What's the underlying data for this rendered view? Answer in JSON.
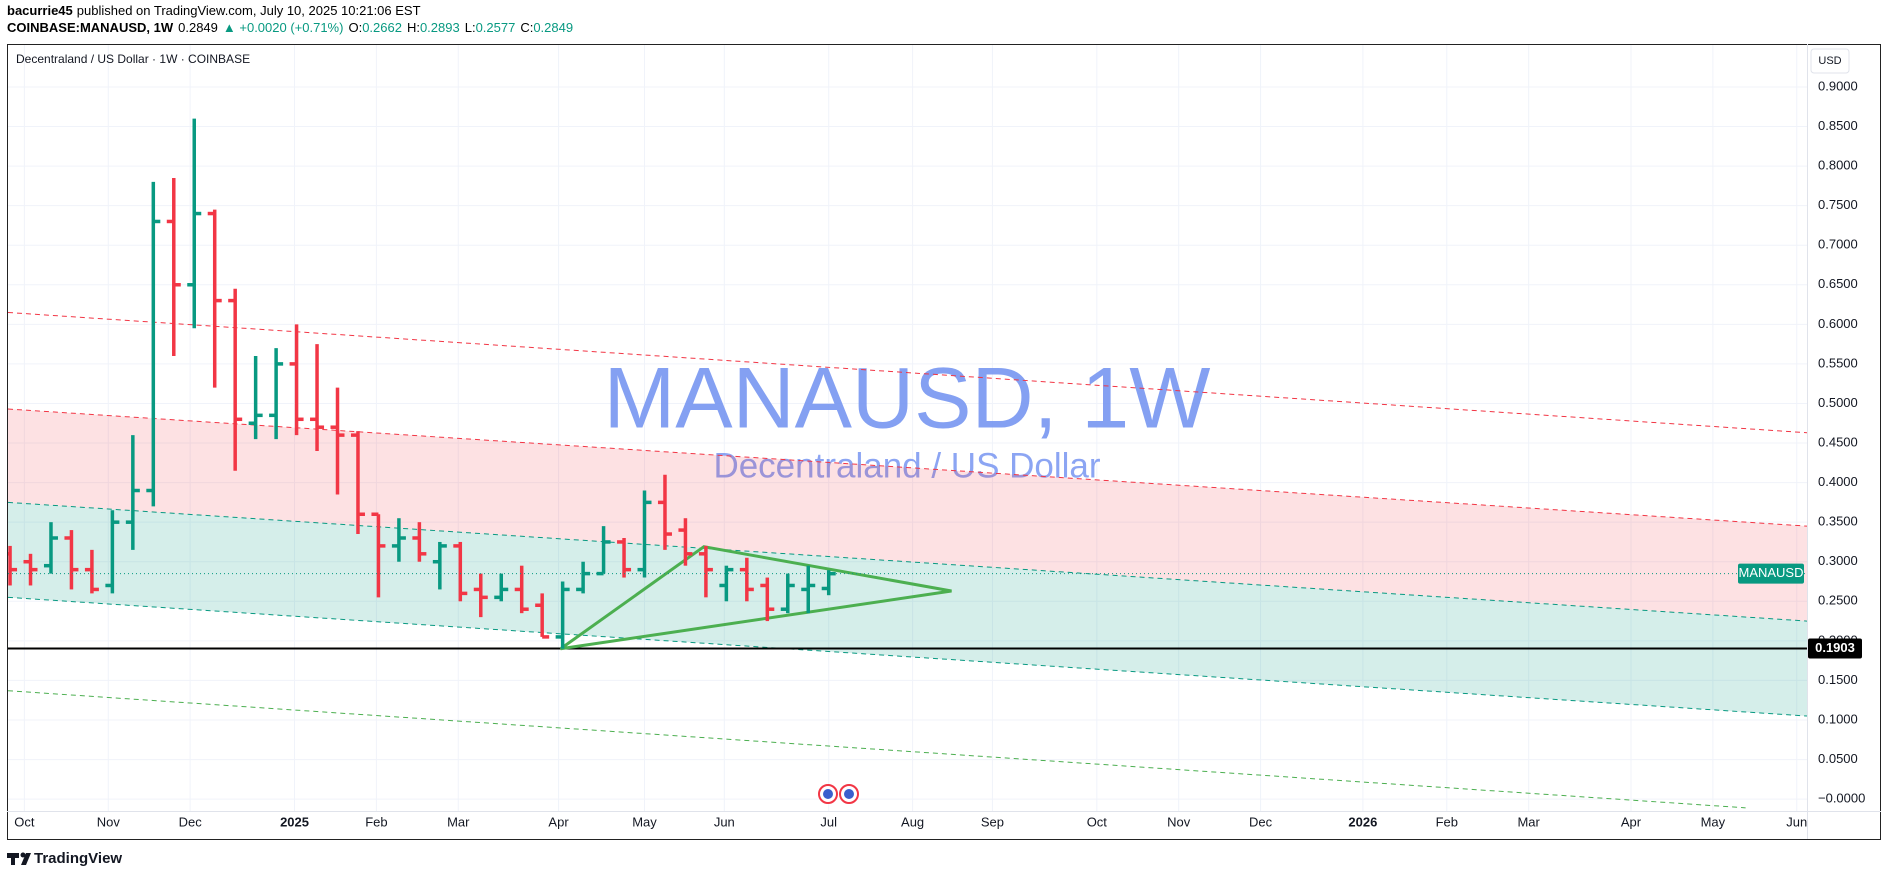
{
  "header": {
    "publisher": "bacurrie45",
    "published": "published on TradingView.com, July 10, 2025 10:21:06 EST",
    "symbol": "COINBASE:MANAUSD, 1W",
    "last": "0.2849",
    "change": "▲ +0.0020 (+0.71%)",
    "o_label": "O:",
    "o": "0.2662",
    "h_label": "H:",
    "h": "0.2893",
    "l_label": "L:",
    "l": "0.2577",
    "c_label": "C:",
    "c": "0.2849"
  },
  "chart_data": {
    "type": "ohlc",
    "title": "Decentraland / US Dollar · 1W · COINBASE",
    "currency": "USD",
    "watermark": "MANAUSD, 1W",
    "watermark_subtitle": "Decentraland / US Dollar",
    "price_label": "MANAUSD",
    "up_color": "#089981",
    "down_color": "#f23645",
    "categories": [
      null,
      null,
      null,
      null,
      null,
      null,
      null,
      null,
      null,
      null,
      null,
      null,
      null,
      null,
      null,
      null,
      null,
      null,
      null,
      null,
      null,
      null,
      null,
      null,
      null,
      null,
      null,
      null,
      null,
      null,
      null,
      null,
      null,
      null,
      null,
      null,
      null,
      null,
      null,
      null,
      null
    ],
    "open": [
      0.31,
      0.3,
      0.295,
      0.33,
      0.29,
      0.27,
      0.35,
      0.39,
      0.73,
      0.65,
      0.74,
      0.63,
      0.475,
      0.485,
      0.55,
      0.48,
      0.47,
      0.46,
      0.36,
      0.32,
      0.33,
      0.3,
      0.32,
      0.265,
      0.255,
      0.265,
      0.245,
      0.205,
      0.265,
      0.285,
      0.325,
      0.29,
      0.375,
      0.34,
      0.31,
      0.27,
      0.29,
      0.27,
      0.24,
      0.265,
      0.2662
    ],
    "high": [
      0.32,
      0.31,
      0.35,
      0.34,
      0.315,
      0.365,
      0.46,
      0.78,
      0.785,
      0.86,
      0.745,
      0.645,
      0.56,
      0.57,
      0.6,
      0.575,
      0.52,
      0.465,
      0.36,
      0.355,
      0.35,
      0.325,
      0.325,
      0.285,
      0.285,
      0.295,
      0.26,
      0.275,
      0.3,
      0.345,
      0.33,
      0.39,
      0.41,
      0.355,
      0.32,
      0.295,
      0.305,
      0.28,
      0.285,
      0.295,
      0.2893
    ],
    "low": [
      0.27,
      0.27,
      0.285,
      0.265,
      0.26,
      0.26,
      0.315,
      0.37,
      0.56,
      0.595,
      0.52,
      0.415,
      0.455,
      0.455,
      0.46,
      0.44,
      0.385,
      0.335,
      0.255,
      0.3,
      0.3,
      0.265,
      0.25,
      0.23,
      0.25,
      0.235,
      0.205,
      0.19,
      0.26,
      0.285,
      0.28,
      0.28,
      0.315,
      0.295,
      0.255,
      0.25,
      0.25,
      0.225,
      0.235,
      0.235,
      0.2577
    ],
    "close": [
      0.29,
      0.29,
      0.33,
      0.29,
      0.265,
      0.35,
      0.39,
      0.73,
      0.65,
      0.74,
      0.63,
      0.48,
      0.485,
      0.55,
      0.48,
      0.47,
      0.46,
      0.36,
      0.32,
      0.33,
      0.31,
      0.32,
      0.26,
      0.255,
      0.265,
      0.24,
      0.205,
      0.265,
      0.285,
      0.325,
      0.29,
      0.375,
      0.335,
      0.31,
      0.29,
      0.29,
      0.265,
      0.24,
      0.27,
      0.27,
      0.2849
    ],
    "xlim": [
      -0.1,
      87.8
    ],
    "xticks": [
      {
        "value": 0.7,
        "label": "Oct"
      },
      {
        "value": 4.8,
        "label": "Nov"
      },
      {
        "value": 8.8,
        "label": "Dec"
      },
      {
        "value": 13.9,
        "label": "2025"
      },
      {
        "value": 17.9,
        "label": "Feb"
      },
      {
        "value": 21.9,
        "label": "Mar"
      },
      {
        "value": 26.8,
        "label": "Apr"
      },
      {
        "value": 31.0,
        "label": "May"
      },
      {
        "value": 34.9,
        "label": "Jun"
      },
      {
        "value": 40.0,
        "label": "Jul"
      },
      {
        "value": 44.1,
        "label": "Aug"
      },
      {
        "value": 48.0,
        "label": "Sep"
      },
      {
        "value": 53.1,
        "label": "Oct"
      },
      {
        "value": 57.1,
        "label": "Nov"
      },
      {
        "value": 61.1,
        "label": "Dec"
      },
      {
        "value": 66.1,
        "label": "2026"
      },
      {
        "value": 70.2,
        "label": "Feb"
      },
      {
        "value": 74.2,
        "label": "Mar"
      },
      {
        "value": 79.2,
        "label": "Apr"
      },
      {
        "value": 83.2,
        "label": "May"
      },
      {
        "value": 87.3,
        "label": "Jun"
      }
    ],
    "ylim": [
      -0.015,
      0.953
    ],
    "yticks": [
      {
        "value": 0,
        "label": "−0.0000"
      },
      {
        "value": 0.05,
        "label": "0.0500"
      },
      {
        "value": 0.1,
        "label": "0.1000"
      },
      {
        "value": 0.15,
        "label": "0.1500"
      },
      {
        "value": 0.2,
        "label": "0.2000"
      },
      {
        "value": 0.25,
        "label": "0.2500"
      },
      {
        "value": 0.3,
        "label": "0.3000"
      },
      {
        "value": 0.35,
        "label": "0.3500"
      },
      {
        "value": 0.4,
        "label": "0.4000"
      },
      {
        "value": 0.45,
        "label": "0.4500"
      },
      {
        "value": 0.5,
        "label": "0.5000"
      },
      {
        "value": 0.55,
        "label": "0.5500"
      },
      {
        "value": 0.6,
        "label": "0.6000"
      },
      {
        "value": 0.65,
        "label": "0.6500"
      },
      {
        "value": 0.7,
        "label": "0.7000"
      },
      {
        "value": 0.75,
        "label": "0.7500"
      },
      {
        "value": 0.8,
        "label": "0.8000"
      },
      {
        "value": 0.85,
        "label": "0.8500"
      },
      {
        "value": 0.9,
        "label": "0.9000"
      }
    ],
    "grid": true,
    "hline": 0.1903,
    "channels": [
      {
        "color": "rgba(242,54,69,0.15)",
        "x": [
          -0.1,
          87.8
        ],
        "top": [
          0.493,
          0.345
        ],
        "bottom": [
          0.375,
          0.225
        ]
      },
      {
        "color": "rgba(8,153,129,0.17)",
        "x": [
          -0.1,
          87.8
        ],
        "top": [
          0.375,
          0.225
        ],
        "bottom": [
          0.255,
          0.105
        ]
      }
    ],
    "trendlines": [
      {
        "color": "#f23645",
        "x": [
          -0.1,
          87.8
        ],
        "y": [
          0.615,
          0.463
        ]
      },
      {
        "color": "#f23645",
        "x": [
          -0.1,
          87.8
        ],
        "y": [
          0.493,
          0.345
        ]
      },
      {
        "color": "#089981",
        "x": [
          -0.1,
          87.8
        ],
        "y": [
          0.375,
          0.225
        ]
      },
      {
        "color": "#089981",
        "x": [
          -0.1,
          87.8
        ],
        "y": [
          0.255,
          0.105
        ]
      },
      {
        "color": "#4caf50",
        "x": [
          -0.1,
          84.8
        ],
        "y": [
          0.137,
          -0.011
        ]
      }
    ],
    "triangle": {
      "color": "#4caf50",
      "x": [
        26.9,
        46.0,
        33.9
      ],
      "y": [
        0.19,
        0.263,
        0.319
      ]
    }
  },
  "footer": {
    "brand": "TradingView"
  }
}
